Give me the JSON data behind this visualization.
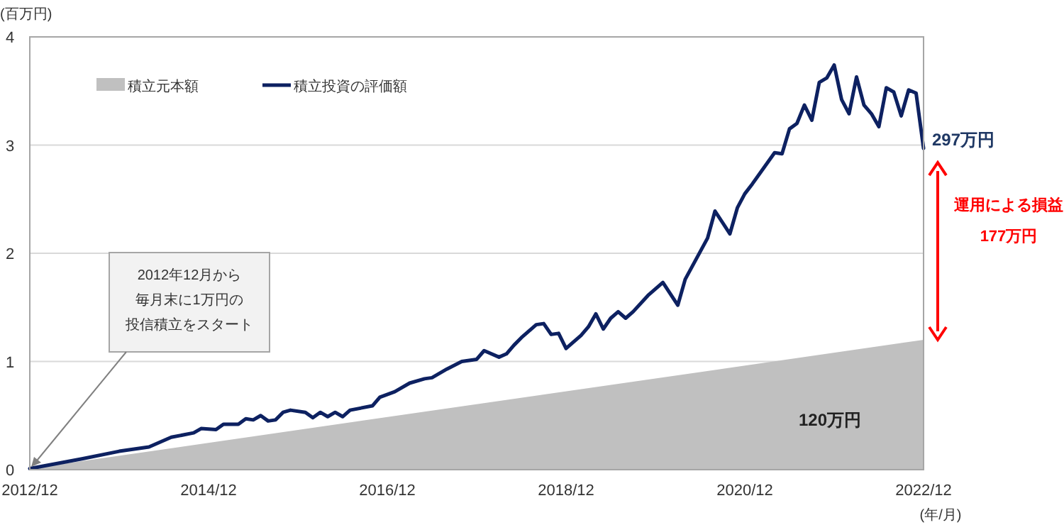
{
  "chart_data": {
    "type": "line",
    "ylabel": "(百万円)",
    "xlabel": "(年/月)",
    "xlim": [
      "2012-12",
      "2022-12"
    ],
    "xticks": [
      {
        "value": "2012-12",
        "label": "2012/12"
      },
      {
        "value": "2014-12",
        "label": "2014/12"
      },
      {
        "value": "2016-12",
        "label": "2016/12"
      },
      {
        "value": "2018-12",
        "label": "2018/12"
      },
      {
        "value": "2020-12",
        "label": "2020/12"
      },
      {
        "value": "2022-12",
        "label": "2022/12"
      }
    ],
    "ylim": [
      0,
      4
    ],
    "yticks": [
      0,
      1,
      2,
      3,
      4
    ],
    "grid": "y",
    "legend": "top left",
    "series": [
      {
        "name": "積立元本額",
        "type": "area",
        "color": "#c0c0c0",
        "x": [
          "2012-12",
          "2022-12"
        ],
        "values": [
          0.01,
          1.2
        ]
      },
      {
        "name": "積立投資の評価額",
        "color": "#0d2161",
        "x": [
          "2012-12",
          "2013-07",
          "2013-12",
          "2014-04",
          "2014-07",
          "2014-10",
          "2014-11",
          "2015-01",
          "2015-02",
          "2015-04",
          "2015-05",
          "2015-06",
          "2015-07",
          "2015-08",
          "2015-09",
          "2015-10",
          "2015-11",
          "2016-01",
          "2016-02",
          "2016-03",
          "2016-04",
          "2016-05",
          "2016-06",
          "2016-07",
          "2016-10",
          "2016-11",
          "2017-01",
          "2017-03",
          "2017-05",
          "2017-06",
          "2017-08",
          "2017-10",
          "2017-12",
          "2018-01",
          "2018-03",
          "2018-04",
          "2018-05",
          "2018-06",
          "2018-08",
          "2018-09",
          "2018-10",
          "2018-11",
          "2018-12",
          "2019-02",
          "2019-03",
          "2019-04",
          "2019-05",
          "2019-06",
          "2019-07",
          "2019-08",
          "2019-09",
          "2019-11",
          "2020-01",
          "2020-03",
          "2020-04",
          "2020-07",
          "2020-08",
          "2020-10",
          "2020-11",
          "2020-12",
          "2021-01",
          "2021-04",
          "2021-05",
          "2021-06",
          "2021-07",
          "2021-08",
          "2021-09",
          "2021-10",
          "2021-11",
          "2021-12",
          "2022-01",
          "2022-02",
          "2022-03",
          "2022-04",
          "2022-05",
          "2022-06",
          "2022-07",
          "2022-08",
          "2022-09",
          "2022-10",
          "2022-11",
          "2022-12"
        ],
        "values": [
          0.01,
          0.1,
          0.17,
          0.21,
          0.3,
          0.34,
          0.38,
          0.37,
          0.42,
          0.42,
          0.47,
          0.46,
          0.5,
          0.45,
          0.46,
          0.53,
          0.55,
          0.53,
          0.48,
          0.53,
          0.49,
          0.53,
          0.49,
          0.55,
          0.59,
          0.67,
          0.72,
          0.8,
          0.84,
          0.85,
          0.93,
          1.0,
          1.02,
          1.1,
          1.04,
          1.07,
          1.15,
          1.22,
          1.34,
          1.35,
          1.25,
          1.26,
          1.12,
          1.24,
          1.32,
          1.44,
          1.3,
          1.4,
          1.46,
          1.4,
          1.46,
          1.61,
          1.73,
          1.52,
          1.76,
          2.14,
          2.39,
          2.18,
          2.42,
          2.55,
          2.64,
          2.93,
          2.92,
          3.15,
          3.2,
          3.37,
          3.23,
          3.58,
          3.62,
          3.74,
          3.42,
          3.29,
          3.63,
          3.37,
          3.29,
          3.17,
          3.53,
          3.49,
          3.27,
          3.51,
          3.48,
          2.97
        ]
      }
    ],
    "annotations": [
      "2012年12月から",
      "毎月末に1万円の",
      {
        "text": "投信積立をスタート",
        "x": "2012-12",
        "y": 0
      },
      "120万円",
      {
        "text": "297万円",
        "x": "2022-12",
        "y": 2.97
      },
      "運用による損益",
      "177万円"
    ]
  }
}
